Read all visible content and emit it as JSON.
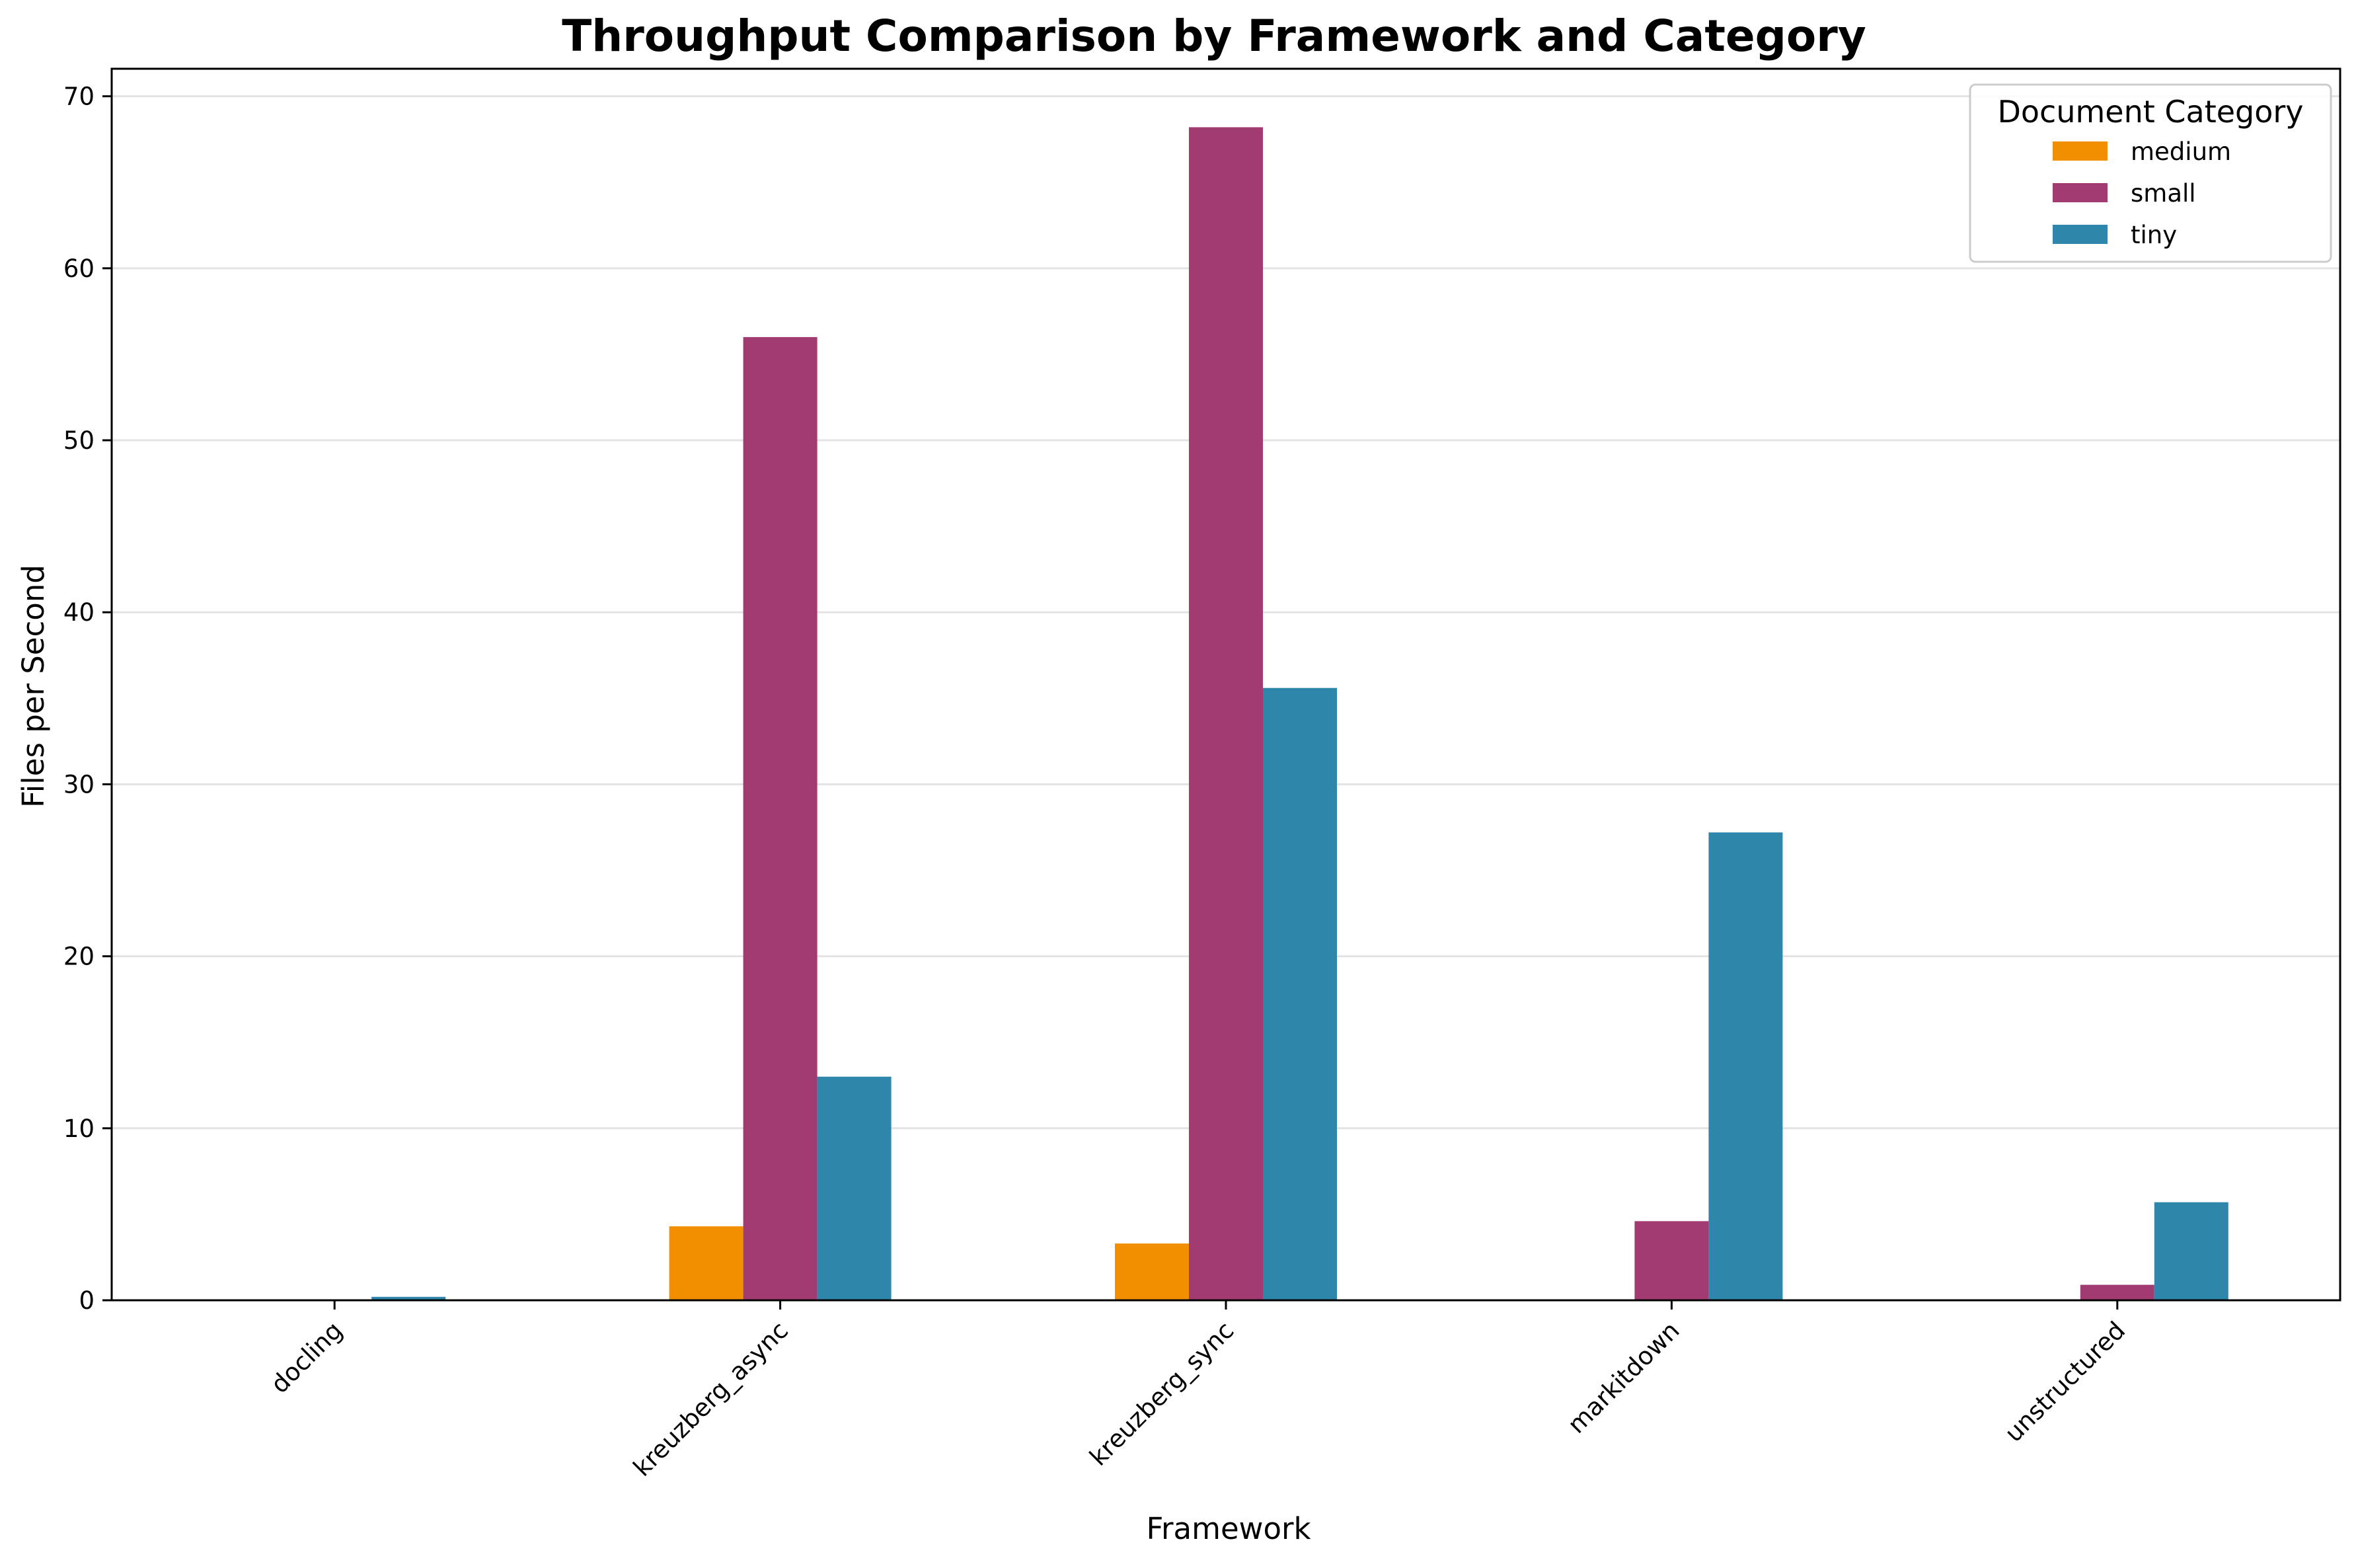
{
  "chart_data": {
    "type": "bar",
    "title": "Throughput Comparison by Framework and Category",
    "xlabel": "Framework",
    "ylabel": "Files per Second",
    "categories": [
      "docling",
      "kreuzberg_async",
      "kreuzberg_sync",
      "markitdown",
      "unstructured"
    ],
    "series": [
      {
        "name": "medium",
        "color": "#f18f01",
        "values": [
          0,
          4.3,
          3.3,
          0,
          0
        ]
      },
      {
        "name": "small",
        "color": "#a23b72",
        "values": [
          0.05,
          56.0,
          68.2,
          4.6,
          0.9
        ]
      },
      {
        "name": "tiny",
        "color": "#2e86ab",
        "values": [
          0.2,
          13.0,
          35.6,
          27.2,
          5.7
        ]
      }
    ],
    "ylim": [
      0,
      71.6
    ],
    "yticks": [
      0,
      10,
      20,
      30,
      40,
      50,
      60,
      70
    ],
    "grid": "y-axis",
    "legend": {
      "title": "Document Category",
      "placement": "top-right"
    },
    "x_tick_rotation": 45
  }
}
